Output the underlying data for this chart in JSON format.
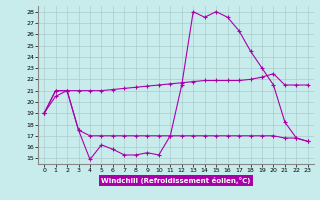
{
  "xlabel": "Windchill (Refroidissement éolien,°C)",
  "x_ticks": [
    0,
    1,
    2,
    3,
    4,
    5,
    6,
    7,
    8,
    9,
    10,
    11,
    12,
    13,
    14,
    15,
    16,
    17,
    18,
    19,
    20,
    21,
    22,
    23
  ],
  "ylim": [
    15,
    28
  ],
  "yticks": [
    15,
    16,
    17,
    18,
    19,
    20,
    21,
    22,
    23,
    24,
    25,
    26,
    27,
    28
  ],
  "background_color": "#c8ecec",
  "line_color": "#aa00aa",
  "grid_color": "#aacccc",
  "line1": [
    19.0,
    20.5,
    21.0,
    17.5,
    14.9,
    16.2,
    15.8,
    15.3,
    15.3,
    15.5,
    15.3,
    17.0,
    21.5,
    28.0,
    27.5,
    28.0,
    27.5,
    26.3,
    24.5,
    23.0,
    21.5,
    18.2,
    16.8,
    16.5
  ],
  "line2": [
    19.0,
    21.0,
    21.0,
    21.0,
    21.0,
    21.0,
    21.1,
    21.2,
    21.3,
    21.4,
    21.5,
    21.6,
    21.7,
    21.8,
    21.9,
    21.9,
    21.9,
    21.9,
    22.0,
    22.2,
    22.5,
    21.5,
    21.5,
    21.5
  ],
  "line3": [
    19.0,
    21.0,
    21.0,
    17.5,
    17.0,
    17.0,
    17.0,
    17.0,
    17.0,
    17.0,
    17.0,
    17.0,
    17.0,
    17.0,
    17.0,
    17.0,
    17.0,
    17.0,
    17.0,
    17.0,
    17.0,
    16.8,
    16.8,
    16.5
  ]
}
